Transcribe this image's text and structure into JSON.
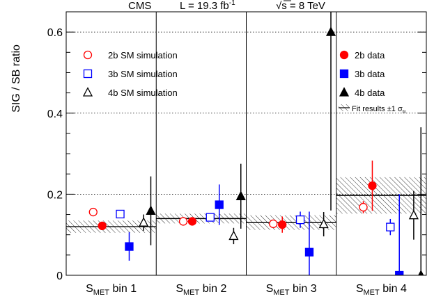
{
  "chart_data": {
    "type": "scatter",
    "title_parts": {
      "experiment": "CMS",
      "lumi_prefix": "L = 19.3 fb",
      "lumi_sup": "-1",
      "energy_sqrt": "√s",
      "energy_value": " = 8 TeV"
    },
    "ylabel": "SIG / SB ratio",
    "ylim": [
      0,
      0.65
    ],
    "yticks": [
      {
        "v": 0,
        "label": "0"
      },
      {
        "v": 0.2,
        "label": "0.2"
      },
      {
        "v": 0.4,
        "label": "0.4"
      },
      {
        "v": 0.6,
        "label": "0.6"
      }
    ],
    "yminor_step": 0.05,
    "hgrid": [
      0.2,
      0.4,
      0.6
    ],
    "grid_style": "dotted",
    "categories": [
      {
        "main": "S",
        "sub": "MET",
        "rest": " bin 1"
      },
      {
        "main": "S",
        "sub": "MET",
        "rest": " bin 2"
      },
      {
        "main": "S",
        "sub": "MET",
        "rest": " bin 3"
      },
      {
        "main": "S",
        "sub": "MET",
        "rest": " bin 4"
      }
    ],
    "fits": [
      {
        "value": 0.12,
        "err": 0.015
      },
      {
        "value": 0.14,
        "err": 0.012
      },
      {
        "value": 0.13,
        "err": 0.018
      },
      {
        "value": 0.197,
        "err": 0.045
      }
    ],
    "series": [
      {
        "name": "2b SM simulation",
        "marker": "circle",
        "filled": false,
        "color": "#ff0000",
        "offset": 0.3,
        "values": [
          0.156,
          0.133,
          0.127,
          0.168
        ],
        "err": [
          0.01,
          0.005,
          0.01,
          0.015
        ]
      },
      {
        "name": "2b data",
        "marker": "circle",
        "filled": true,
        "color": "#ff0000",
        "offset": 0.4,
        "values": [
          0.122,
          0.133,
          0.125,
          0.221
        ],
        "err": [
          0.01,
          0.005,
          0.02,
          0.062
        ]
      },
      {
        "name": "3b SM simulation",
        "marker": "square",
        "filled": false,
        "color": "#0000ff",
        "offset": 0.6,
        "values": [
          0.151,
          0.143,
          0.137,
          0.119
        ],
        "err": [
          0.01,
          0.01,
          0.02,
          0.02
        ]
      },
      {
        "name": "3b data",
        "marker": "square",
        "filled": true,
        "color": "#0000ff",
        "offset": 0.7,
        "values": [
          0.071,
          0.174,
          0.057,
          0.0
        ],
        "err": [
          0.035,
          0.05,
          0.1,
          0.2
        ]
      },
      {
        "name": "4b SM simulation",
        "marker": "triangle",
        "filled": false,
        "color": "#000000",
        "offset": 0.86,
        "values": [
          0.13,
          0.097,
          0.126,
          0.148
        ],
        "err": [
          0.02,
          0.02,
          0.03,
          0.06
        ]
      },
      {
        "name": "4b data",
        "marker": "triangle",
        "filled": true,
        "color": "#000000",
        "offset": 0.94,
        "values": [
          0.159,
          0.195,
          0.6,
          0.0
        ],
        "err": [
          0.085,
          0.08,
          0.44,
          0.365
        ]
      }
    ],
    "legend": {
      "left": [
        "2b SM simulation",
        "3b SM simulation",
        "4b SM simulation"
      ],
      "right": [
        "2b data",
        "3b data",
        "4b data"
      ],
      "fit_label": "Fit results ±1 σ",
      "fit_sub": "fit"
    }
  }
}
